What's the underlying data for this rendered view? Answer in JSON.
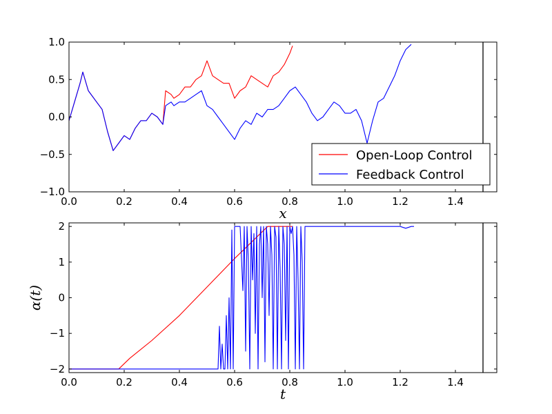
{
  "chart_data": [
    {
      "type": "line",
      "title": "",
      "xlabel": "x",
      "ylabel": "",
      "xlim": [
        0.0,
        1.55
      ],
      "ylim": [
        -1.0,
        1.0
      ],
      "xticks": [
        "0.0",
        "0.2",
        "0.4",
        "0.6",
        "0.8",
        "1.0",
        "1.2",
        "1.4"
      ],
      "yticks": [
        "−1.0",
        "−0.5",
        "0.0",
        "0.5",
        "1.0"
      ],
      "vline_x": 1.5,
      "legend": {
        "placement": "lower-right",
        "entries": [
          "Open-Loop Control",
          "Feedback Control"
        ]
      },
      "series": [
        {
          "name": "Open-Loop Control",
          "color": "#ff0000",
          "x": [
            0.0,
            0.02,
            0.04,
            0.05,
            0.07,
            0.1,
            0.12,
            0.14,
            0.16,
            0.18,
            0.2,
            0.22,
            0.24,
            0.26,
            0.28,
            0.3,
            0.32,
            0.34,
            0.35,
            0.37,
            0.38,
            0.4,
            0.42,
            0.44,
            0.46,
            0.48,
            0.5,
            0.52,
            0.54,
            0.56,
            0.58,
            0.6,
            0.62,
            0.64,
            0.66,
            0.68,
            0.7,
            0.72,
            0.74,
            0.76,
            0.78,
            0.8,
            0.81
          ],
          "y": [
            -0.05,
            0.2,
            0.45,
            0.6,
            0.35,
            0.2,
            0.1,
            -0.2,
            -0.45,
            -0.35,
            -0.25,
            -0.3,
            -0.15,
            -0.05,
            -0.05,
            0.05,
            0.0,
            -0.1,
            0.35,
            0.3,
            0.25,
            0.3,
            0.4,
            0.4,
            0.5,
            0.55,
            0.75,
            0.55,
            0.5,
            0.45,
            0.45,
            0.25,
            0.35,
            0.4,
            0.55,
            0.5,
            0.45,
            0.4,
            0.55,
            0.6,
            0.7,
            0.85,
            0.95
          ]
        },
        {
          "name": "Feedback Control",
          "color": "#0000ff",
          "x": [
            0.0,
            0.02,
            0.04,
            0.05,
            0.07,
            0.1,
            0.12,
            0.14,
            0.16,
            0.18,
            0.2,
            0.22,
            0.24,
            0.26,
            0.28,
            0.3,
            0.32,
            0.34,
            0.35,
            0.37,
            0.38,
            0.4,
            0.42,
            0.44,
            0.46,
            0.48,
            0.5,
            0.52,
            0.54,
            0.56,
            0.58,
            0.6,
            0.62,
            0.64,
            0.66,
            0.68,
            0.7,
            0.72,
            0.74,
            0.76,
            0.78,
            0.8,
            0.82,
            0.84,
            0.86,
            0.88,
            0.9,
            0.92,
            0.94,
            0.96,
            0.98,
            1.0,
            1.02,
            1.04,
            1.06,
            1.08,
            1.1,
            1.12,
            1.14,
            1.16,
            1.18,
            1.2,
            1.22,
            1.24
          ],
          "y": [
            -0.05,
            0.2,
            0.45,
            0.6,
            0.35,
            0.2,
            0.1,
            -0.2,
            -0.45,
            -0.35,
            -0.25,
            -0.3,
            -0.15,
            -0.05,
            -0.05,
            0.05,
            0.0,
            -0.1,
            0.15,
            0.2,
            0.15,
            0.2,
            0.2,
            0.25,
            0.3,
            0.35,
            0.15,
            0.1,
            0.0,
            -0.1,
            -0.2,
            -0.3,
            -0.15,
            -0.05,
            -0.1,
            0.05,
            0.0,
            0.1,
            0.1,
            0.15,
            0.25,
            0.35,
            0.4,
            0.3,
            0.2,
            0.05,
            -0.05,
            0.0,
            0.1,
            0.2,
            0.15,
            0.05,
            0.05,
            0.1,
            -0.05,
            -0.35,
            -0.05,
            0.2,
            0.25,
            0.4,
            0.55,
            0.75,
            0.9,
            0.97
          ]
        }
      ]
    },
    {
      "type": "line",
      "title": "",
      "xlabel": "t",
      "ylabel": "α(t)",
      "xlim": [
        0.0,
        1.55
      ],
      "ylim": [
        -2.1,
        2.1
      ],
      "xticks": [
        "0.0",
        "0.2",
        "0.4",
        "0.6",
        "0.8",
        "1.0",
        "1.2",
        "1.4"
      ],
      "yticks": [
        "−2",
        "−1",
        "0",
        "1",
        "2"
      ],
      "vline_x": 1.5,
      "series": [
        {
          "name": "Open-Loop Control",
          "color": "#ff0000",
          "x": [
            0.0,
            0.18,
            0.22,
            0.3,
            0.4,
            0.5,
            0.6,
            0.7,
            0.72,
            0.81
          ],
          "y": [
            -2.0,
            -2.0,
            -1.7,
            -1.2,
            -0.5,
            0.3,
            1.1,
            1.85,
            2.0,
            2.0
          ]
        },
        {
          "name": "Feedback Control",
          "color": "#0000ff",
          "x": [
            0.0,
            0.54,
            0.545,
            0.55,
            0.555,
            0.56,
            0.565,
            0.57,
            0.575,
            0.58,
            0.585,
            0.59,
            0.595,
            0.6,
            0.61,
            0.62,
            0.63,
            0.635,
            0.64,
            0.645,
            0.65,
            0.655,
            0.66,
            0.665,
            0.67,
            0.675,
            0.68,
            0.685,
            0.69,
            0.695,
            0.7,
            0.705,
            0.71,
            0.715,
            0.72,
            0.725,
            0.73,
            0.735,
            0.74,
            0.745,
            0.75,
            0.755,
            0.76,
            0.765,
            0.77,
            0.775,
            0.78,
            0.785,
            0.79,
            0.795,
            0.8,
            0.805,
            0.81,
            0.815,
            0.82,
            0.825,
            0.83,
            0.835,
            0.84,
            0.845,
            0.85,
            0.855,
            0.86,
            0.9,
            1.0,
            1.1,
            1.2,
            1.22,
            1.24,
            1.25
          ],
          "y": [
            -2.0,
            -2.0,
            -0.8,
            -2.0,
            -1.3,
            -2.0,
            -2.0,
            -0.5,
            -2.0,
            0.0,
            -2.0,
            1.9,
            -2.0,
            2.0,
            2.0,
            2.0,
            0.2,
            2.0,
            -1.5,
            2.0,
            1.0,
            -2.0,
            2.0,
            0.5,
            1.8,
            -1.0,
            2.0,
            -2.0,
            1.5,
            2.0,
            0.0,
            2.0,
            -1.8,
            2.0,
            1.5,
            -0.5,
            2.0,
            1.2,
            -2.0,
            2.0,
            1.7,
            -2.0,
            2.0,
            0.8,
            -2.0,
            2.0,
            1.5,
            -1.2,
            2.0,
            -2.0,
            2.0,
            1.8,
            2.0,
            1.2,
            -2.0,
            2.0,
            0.5,
            -2.0,
            2.0,
            1.0,
            -2.0,
            2.0,
            2.0,
            2.0,
            2.0,
            2.0,
            2.0,
            1.95,
            2.0,
            2.0
          ]
        }
      ]
    }
  ]
}
